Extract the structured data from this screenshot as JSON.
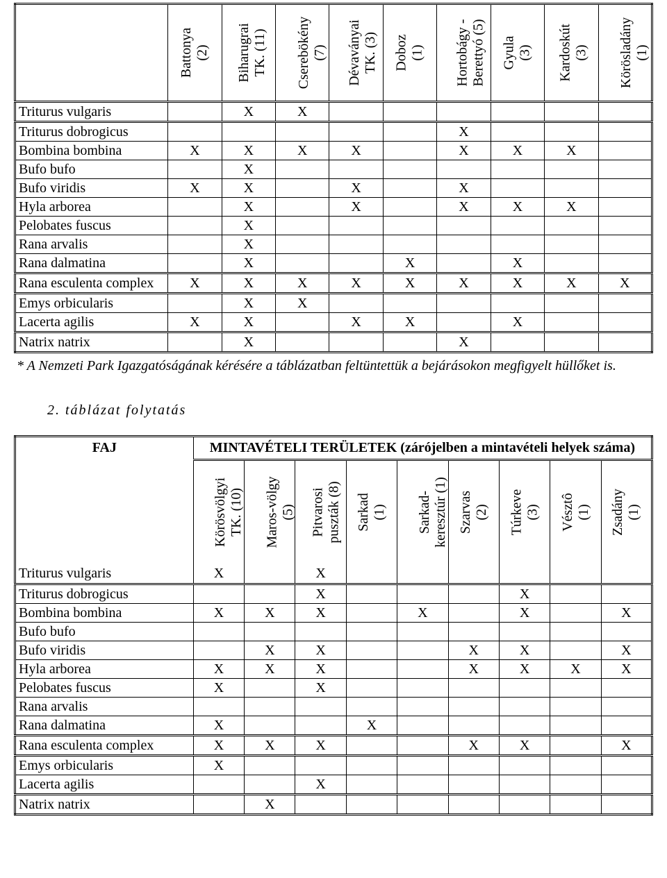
{
  "mark": "X",
  "note_text": "* A Nemzeti Park Igazgatóságának kérésére a táblázatban feltüntettük a bejárásokon megfigyelt hüllőket is.",
  "subtitle": "2. táblázat folytatás",
  "species": [
    "Triturus vulgaris",
    "Triturus dobrogicus",
    "Bombina bombina",
    "Bufo bufo",
    "Bufo viridis",
    "Hyla arborea",
    "Pelobates fuscus",
    "Rana arvalis",
    "Rana dalmatina",
    "Rana esculenta complex",
    "Emys orbicularis",
    "Lacerta agilis",
    "Natrix natrix"
  ],
  "row_groups": [
    0,
    1,
    9,
    10,
    12
  ],
  "t1": {
    "col_widths_pct": [
      24,
      8.44,
      8.44,
      8.44,
      8.44,
      8.44,
      8.44,
      8.44,
      8.44,
      8.44
    ],
    "headers": [
      "Battonya\n(2)",
      "Biharugrai\nTK. (11)",
      "Cserebökény\n(7)",
      "Dévaványai\nTK. (3)",
      "Doboz\n(1)",
      "Hortobágy -\nBerettyó (5)",
      "Gyula\n(3)",
      "Kardoskút\n(3)",
      "Körösladány\n(1)"
    ],
    "grid": [
      [
        0,
        1,
        1,
        0,
        0,
        0,
        0,
        0,
        0
      ],
      [
        0,
        0,
        0,
        0,
        0,
        1,
        0,
        0,
        0
      ],
      [
        1,
        1,
        1,
        1,
        0,
        1,
        1,
        1,
        0
      ],
      [
        0,
        1,
        0,
        0,
        0,
        0,
        0,
        0,
        0
      ],
      [
        1,
        1,
        0,
        1,
        0,
        1,
        0,
        0,
        0
      ],
      [
        0,
        1,
        0,
        1,
        0,
        1,
        1,
        1,
        0
      ],
      [
        0,
        1,
        0,
        0,
        0,
        0,
        0,
        0,
        0
      ],
      [
        0,
        1,
        0,
        0,
        0,
        0,
        0,
        0,
        0
      ],
      [
        0,
        1,
        0,
        0,
        1,
        0,
        1,
        0,
        0
      ],
      [
        1,
        1,
        1,
        1,
        1,
        1,
        1,
        1,
        1
      ],
      [
        0,
        1,
        1,
        0,
        0,
        0,
        0,
        0,
        0
      ],
      [
        1,
        1,
        0,
        1,
        1,
        0,
        1,
        0,
        0
      ],
      [
        0,
        1,
        0,
        0,
        0,
        1,
        0,
        0,
        0
      ]
    ]
  },
  "t2": {
    "faj_label": "FAJ",
    "caption": "MINTAVÉTELI TERÜLETEK (zárójelben a mintavételi helyek száma)",
    "col_widths_pct": [
      28,
      8,
      8,
      8,
      8,
      8,
      8,
      8,
      8,
      8
    ],
    "headers": [
      "Körösvölgyi\nTK. (10)",
      "Maros-völgy\n(5)",
      "Pitvarosi\npuszták (8)",
      "Sarkad\n(1)",
      "Sarkad-\nkeresztúr (1)",
      "Szarvas\n(2)",
      "Túrkeve\n(3)",
      "Vésztô\n(1)",
      "Zsadány\n(1)"
    ],
    "grid": [
      [
        1,
        0,
        1,
        0,
        0,
        0,
        0,
        0,
        0
      ],
      [
        0,
        0,
        1,
        0,
        0,
        0,
        1,
        0,
        0
      ],
      [
        1,
        1,
        1,
        0,
        1,
        0,
        1,
        0,
        1
      ],
      [
        0,
        0,
        0,
        0,
        0,
        0,
        0,
        0,
        0
      ],
      [
        0,
        1,
        1,
        0,
        0,
        1,
        1,
        0,
        1
      ],
      [
        1,
        1,
        1,
        0,
        0,
        1,
        1,
        1,
        1
      ],
      [
        1,
        0,
        1,
        0,
        0,
        0,
        0,
        0,
        0
      ],
      [
        0,
        0,
        0,
        0,
        0,
        0,
        0,
        0,
        0
      ],
      [
        1,
        0,
        0,
        1,
        0,
        0,
        0,
        0,
        0
      ],
      [
        1,
        1,
        1,
        0,
        0,
        1,
        1,
        0,
        1
      ],
      [
        1,
        0,
        0,
        0,
        0,
        0,
        0,
        0,
        0
      ],
      [
        0,
        0,
        1,
        0,
        0,
        0,
        0,
        0,
        0
      ],
      [
        0,
        1,
        0,
        0,
        0,
        0,
        0,
        0,
        0
      ]
    ]
  }
}
